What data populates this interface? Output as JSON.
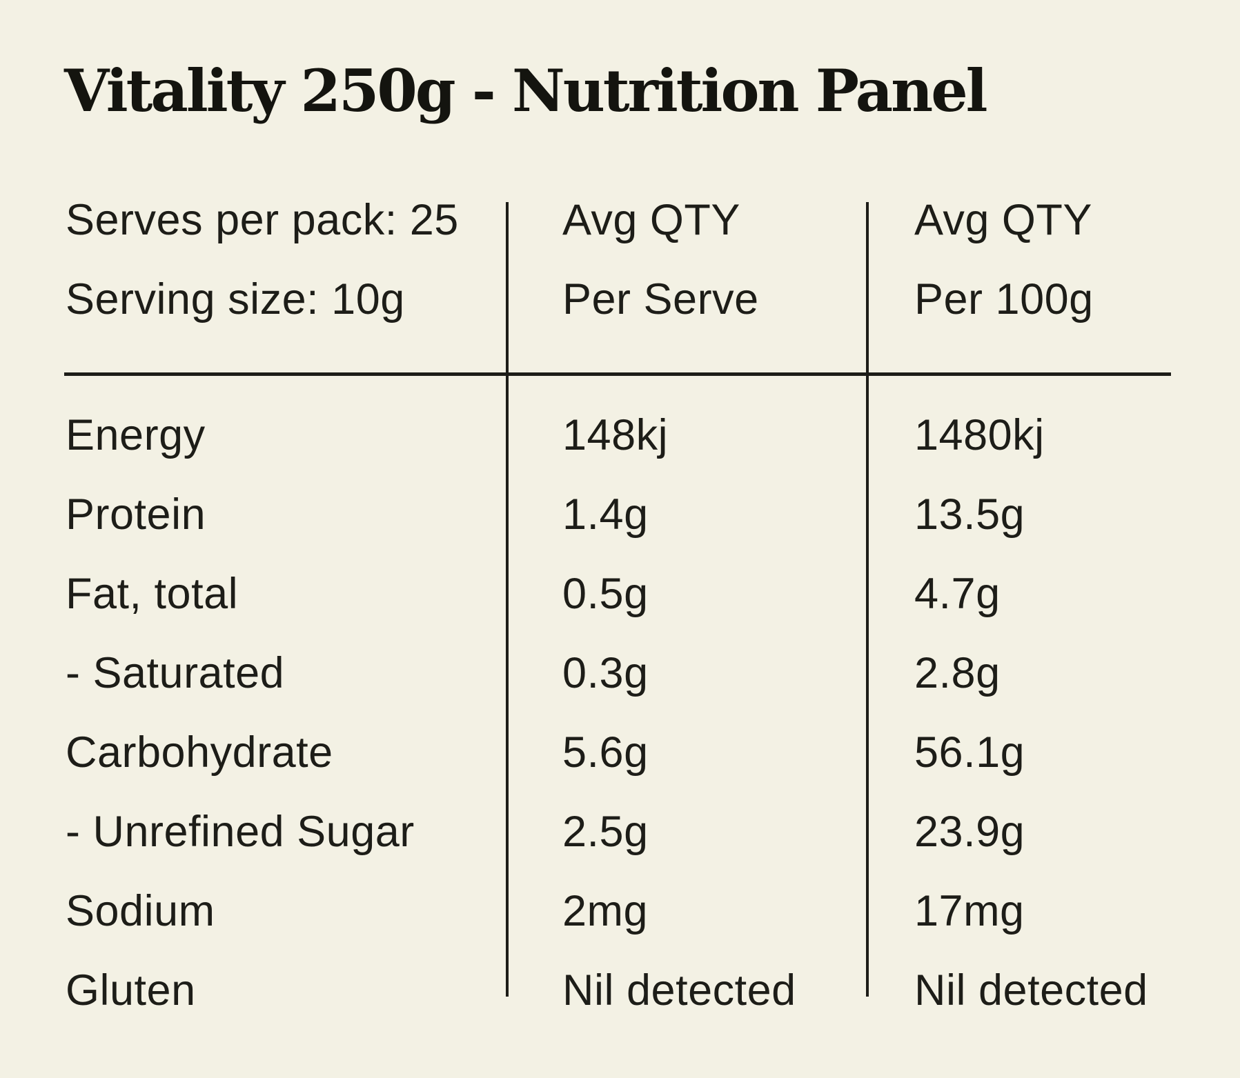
{
  "title": "Vitality 250g - Nutrition Panel",
  "colors": {
    "background": "#f3f1e4",
    "ink": "#1d1d18"
  },
  "header": {
    "serves_per_pack": "Serves per pack: 25",
    "serving_size": "Serving size: 10g",
    "per_serve_col": {
      "line1": "Avg QTY",
      "line2": "Per Serve"
    },
    "per_100g_col": {
      "line1": "Avg QTY",
      "line2": "Per 100g"
    }
  },
  "rows": [
    {
      "label": "Energy",
      "per_serve": "148kj",
      "per_100g": "1480kj"
    },
    {
      "label": "Protein",
      "per_serve": "1.4g",
      "per_100g": "13.5g"
    },
    {
      "label": "Fat, total",
      "per_serve": "0.5g",
      "per_100g": "4.7g"
    },
    {
      "label": "- Saturated",
      "per_serve": "0.3g",
      "per_100g": "2.8g"
    },
    {
      "label": "Carbohydrate",
      "per_serve": "5.6g",
      "per_100g": "56.1g"
    },
    {
      "label": "- Unrefined Sugar",
      "per_serve": "2.5g",
      "per_100g": "23.9g"
    },
    {
      "label": "Sodium",
      "per_serve": "2mg",
      "per_100g": "17mg"
    },
    {
      "label": "Gluten",
      "per_serve": "Nil detected",
      "per_100g": "Nil detected"
    }
  ]
}
